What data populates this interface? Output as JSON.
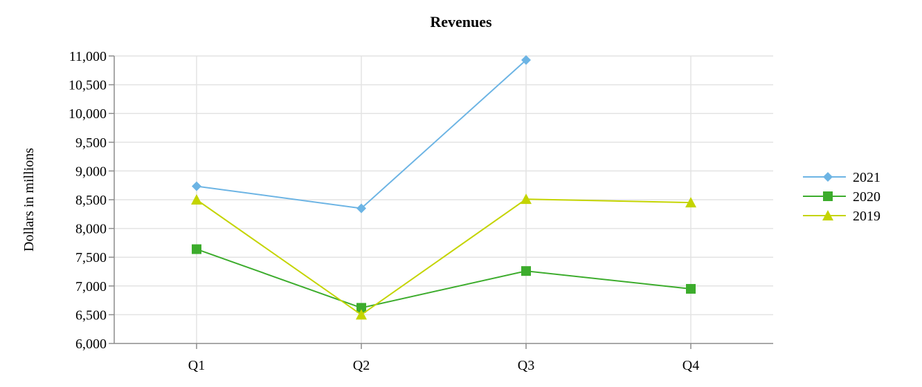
{
  "chart_data": {
    "type": "line",
    "title": "Revenues",
    "xlabel": "",
    "ylabel": "Dollars in millions",
    "categories": [
      "Q1",
      "Q2",
      "Q3",
      "Q4"
    ],
    "ylim": [
      6000,
      11000
    ],
    "yticks": [
      6000,
      6500,
      7000,
      7500,
      8000,
      8500,
      9000,
      9500,
      10000,
      10500,
      11000
    ],
    "ytick_labels": [
      "6,000",
      "6,500",
      "7,000",
      "7,500",
      "8,000",
      "8,500",
      "9,000",
      "9,500",
      "10,000",
      "10,500",
      "11,000"
    ],
    "grid": true,
    "legend_position": "right",
    "series": [
      {
        "name": "2021",
        "color": "#6cb4e4",
        "marker": "diamond",
        "values": [
          8735,
          8350,
          10930,
          null
        ]
      },
      {
        "name": "2020",
        "color": "#3cac2c",
        "marker": "square",
        "values": [
          7640,
          6620,
          7260,
          6950
        ]
      },
      {
        "name": "2019",
        "color": "#c4d400",
        "marker": "triangle",
        "values": [
          8500,
          6500,
          8510,
          8450
        ]
      }
    ]
  }
}
